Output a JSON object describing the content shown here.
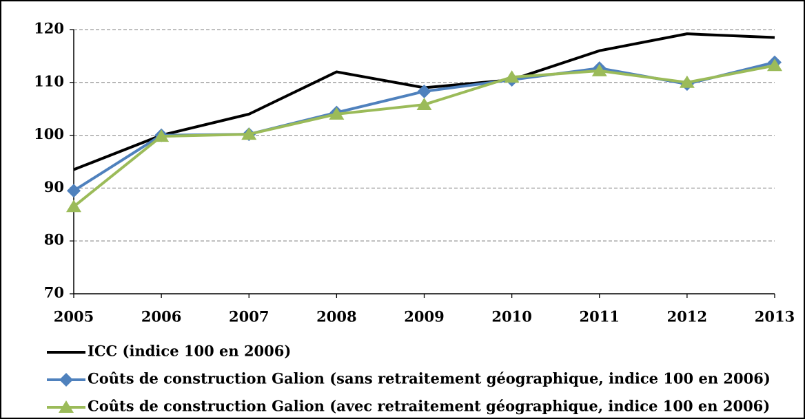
{
  "chart_data": {
    "type": "line",
    "categories": [
      "2005",
      "2006",
      "2007",
      "2008",
      "2009",
      "2010",
      "2011",
      "2012",
      "2013"
    ],
    "series": [
      {
        "name": "ICC (indice 100 en 2006)",
        "color": "#000000",
        "marker": "none",
        "values": [
          93.5,
          100,
          104,
          112,
          109,
          110.5,
          116,
          119.2,
          118.5
        ]
      },
      {
        "name": "Coûts de construction Galion (sans retraitement géographique, indice 100 en 2006)",
        "color": "#4f81bd",
        "marker": "diamond",
        "values": [
          89.5,
          100,
          100.2,
          104.3,
          108.3,
          110.5,
          112.7,
          109.7,
          113.8
        ]
      },
      {
        "name": "Coûts de construction Galion (avec retraitement géographique, indice 100 en 2006)",
        "color": "#9bbb59",
        "marker": "triangle",
        "values": [
          86.5,
          99.8,
          100.2,
          104,
          105.8,
          111,
          112.2,
          110,
          113.2
        ]
      }
    ],
    "ylim": [
      70,
      120
    ],
    "yticks": [
      70,
      80,
      90,
      100,
      110,
      120
    ],
    "grid": true,
    "legend": "bottom"
  }
}
